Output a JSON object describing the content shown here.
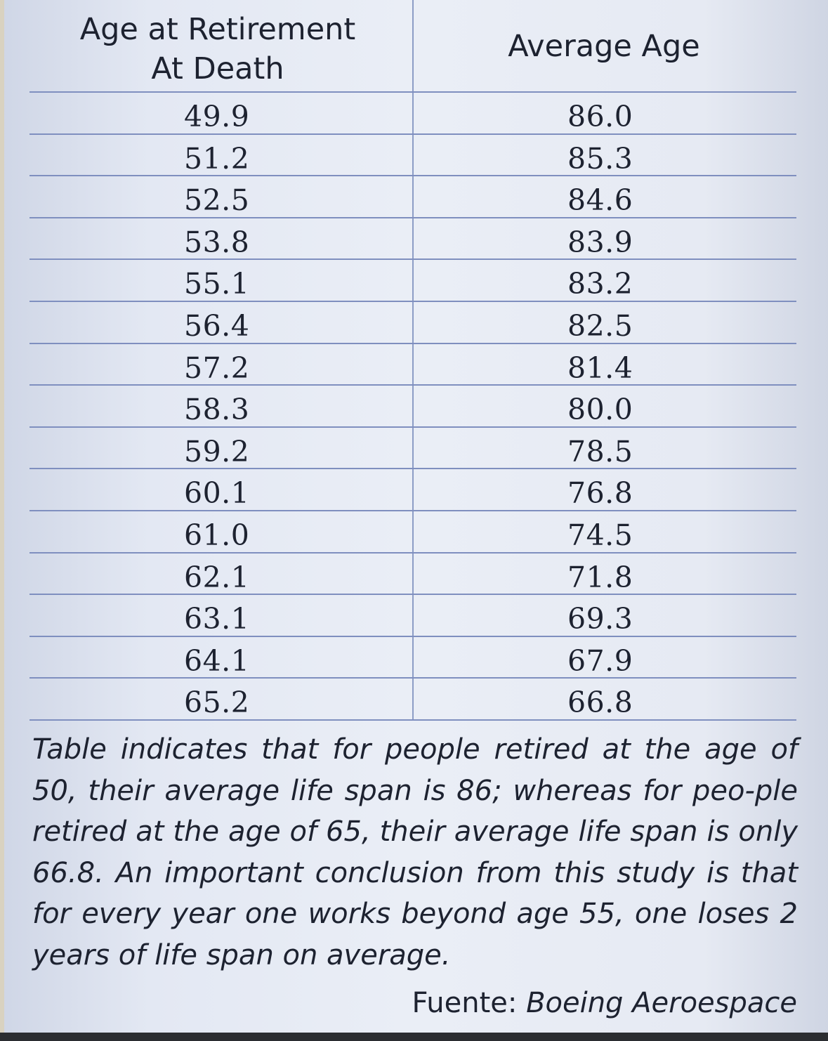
{
  "table": {
    "headers": {
      "col1_line1": "Age at Retirement",
      "col1_line2": "At Death",
      "col2": "Average Age"
    },
    "rows": [
      {
        "retirement": "49.9",
        "average": "86.0"
      },
      {
        "retirement": "51.2",
        "average": "85.3"
      },
      {
        "retirement": "52.5",
        "average": "84.6"
      },
      {
        "retirement": "53.8",
        "average": "83.9"
      },
      {
        "retirement": "55.1",
        "average": "83.2"
      },
      {
        "retirement": "56.4",
        "average": "82.5"
      },
      {
        "retirement": "57.2",
        "average": "81.4"
      },
      {
        "retirement": "58.3",
        "average": "80.0"
      },
      {
        "retirement": "59.2",
        "average": "78.5"
      },
      {
        "retirement": "60.1",
        "average": "76.8"
      },
      {
        "retirement": "61.0",
        "average": "74.5"
      },
      {
        "retirement": "62.1",
        "average": "71.8"
      },
      {
        "retirement": "63.1",
        "average": "69.3"
      },
      {
        "retirement": "64.1",
        "average": "67.9"
      },
      {
        "retirement": "65.2",
        "average": "66.8"
      }
    ]
  },
  "note": "Table indicates that for people retired at the age of 50, their average life span is 86; whereas for peo-ple retired at the age of 65, their average life span is only 66.8. An important conclusion from this study is that for every year one works beyond age 55, one loses 2 years of life span on average.",
  "source": {
    "label": "Fuente:",
    "publisher": "Boeing Aeroespace"
  }
}
